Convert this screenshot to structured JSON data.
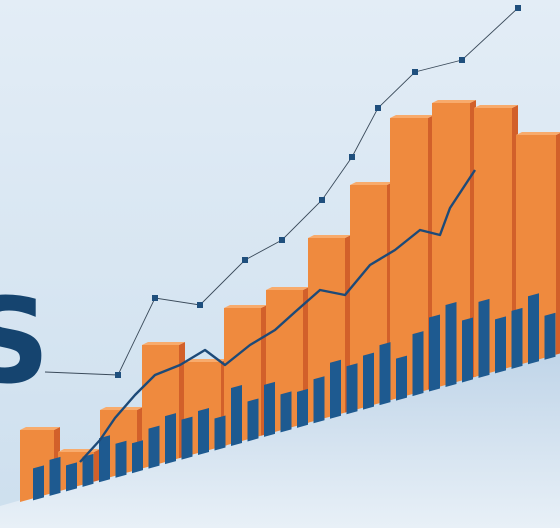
{
  "illustration": {
    "letter": "S"
  }
}
